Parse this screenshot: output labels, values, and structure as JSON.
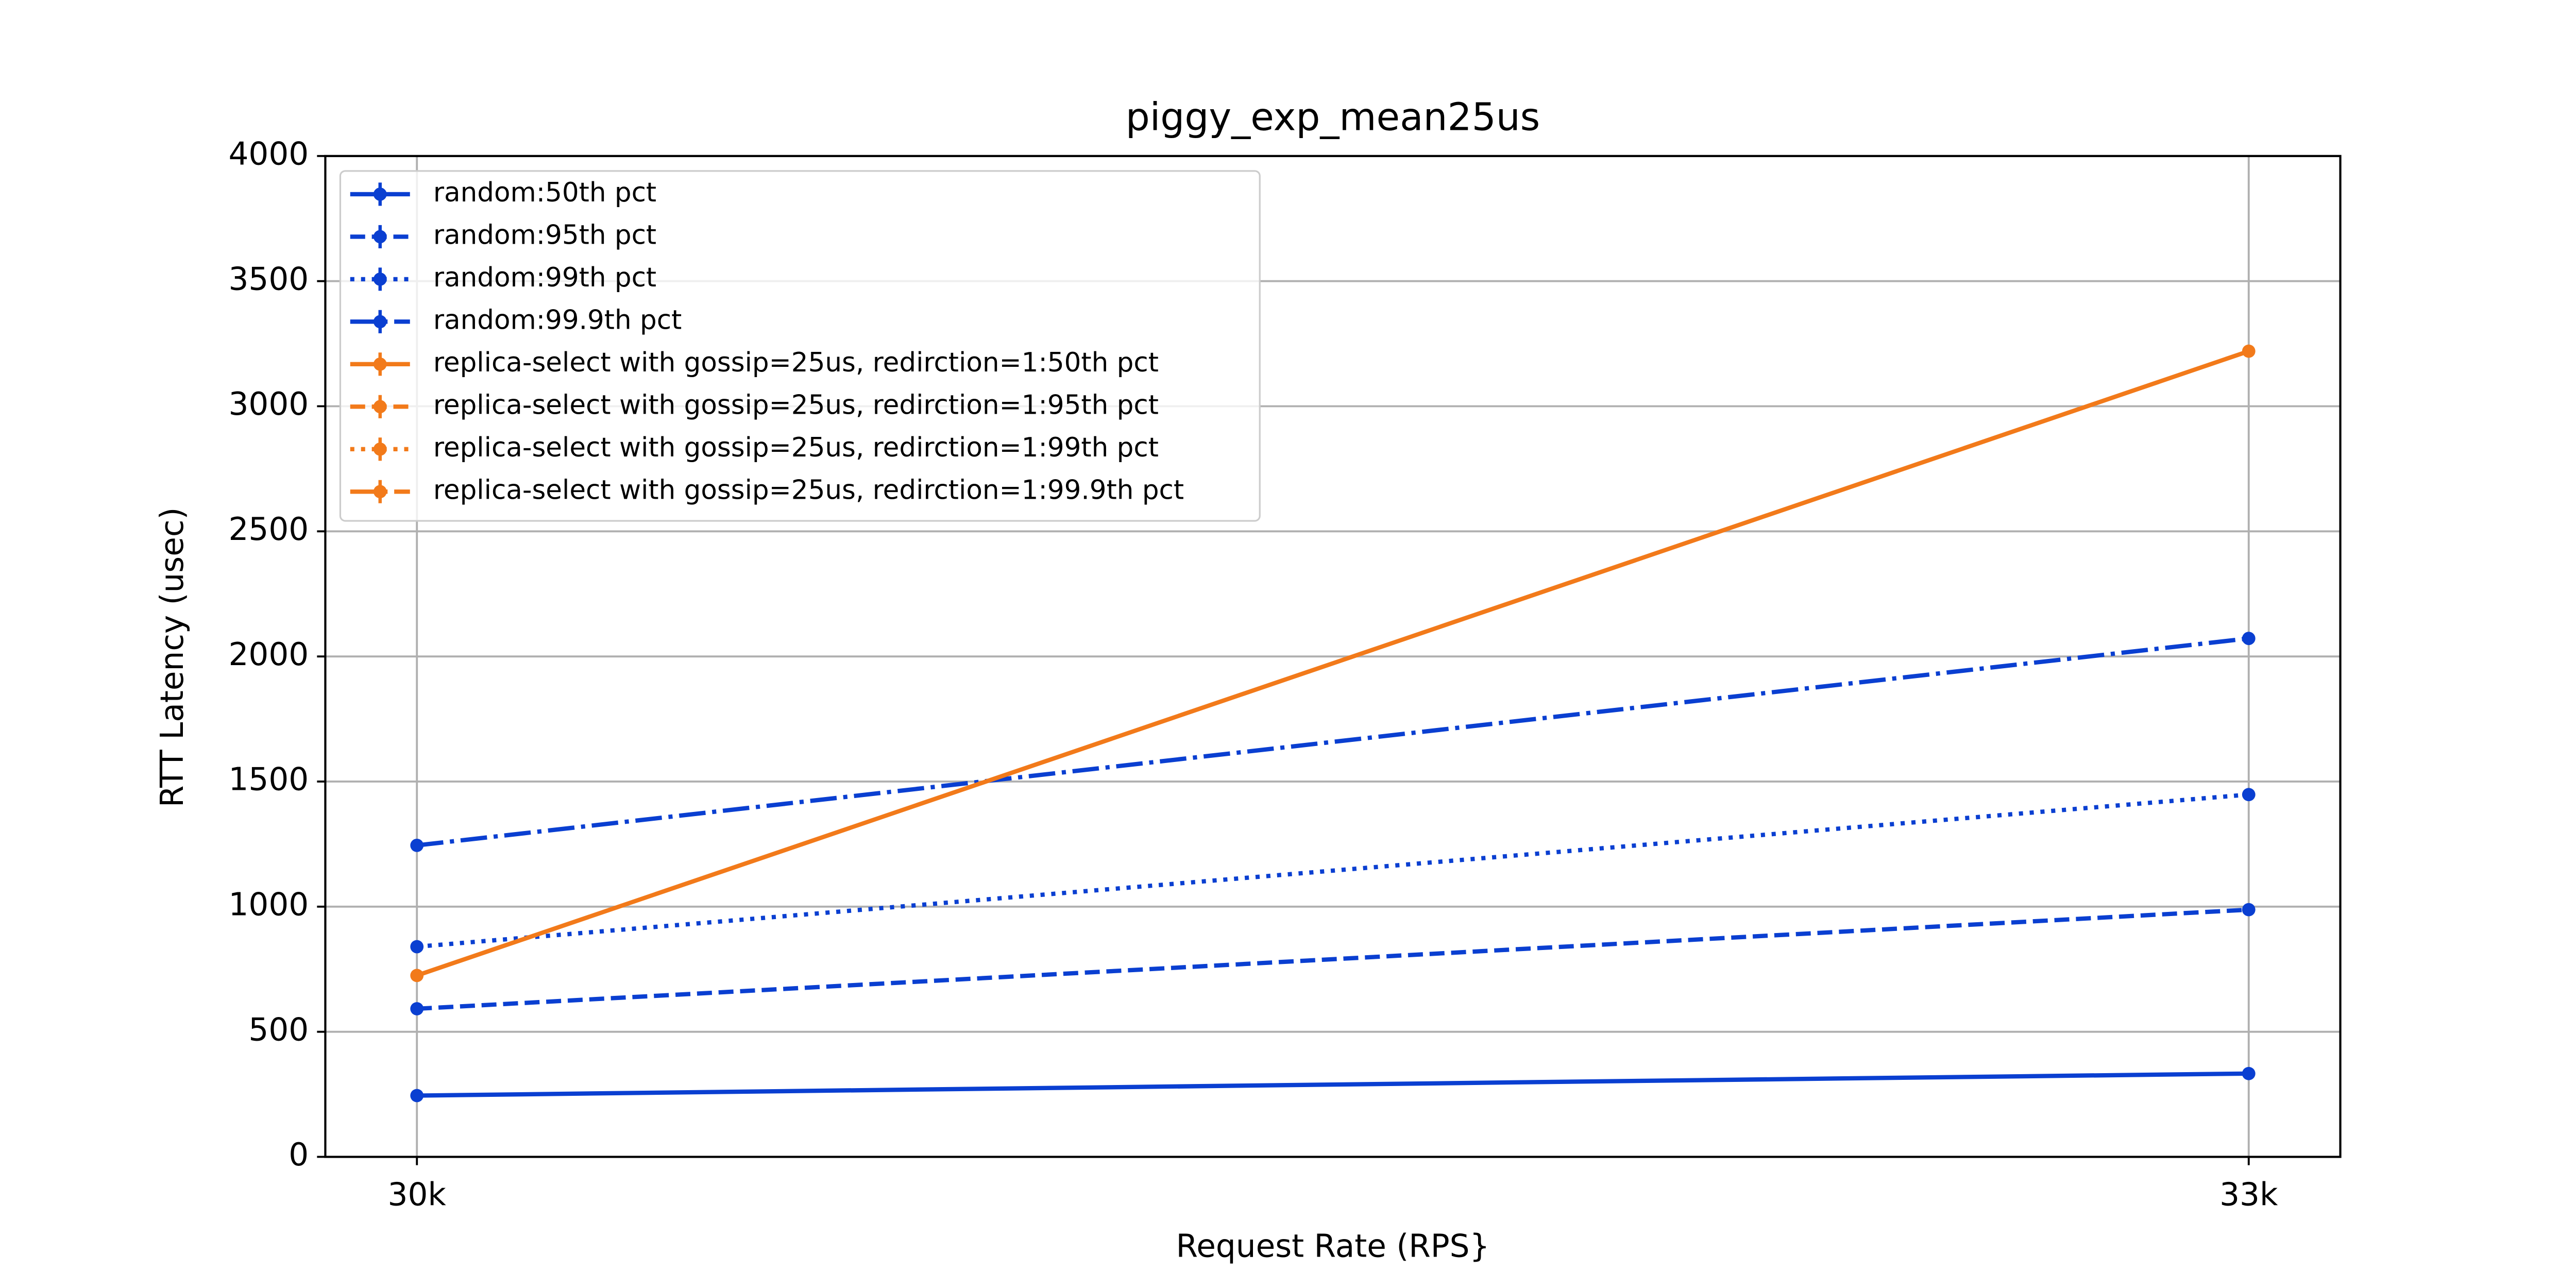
{
  "chart_data": {
    "type": "line",
    "title": "piggy_exp_mean25us",
    "xlabel": "Request Rate (RPS}",
    "ylabel": "RTT Latency (usec)",
    "categories": [
      "30k",
      "33k"
    ],
    "ylim": [
      0,
      4000
    ],
    "yticks": [
      0,
      500,
      1000,
      1500,
      2000,
      2500,
      3000,
      3500,
      4000
    ],
    "grid": true,
    "legend": "upper left",
    "series": [
      {
        "name": "random:50th pct",
        "color": "#0a3fd1",
        "style": "solid",
        "values": [
          245,
          333
        ]
      },
      {
        "name": "random:95th pct",
        "color": "#0a3fd1",
        "style": "dashed",
        "values": [
          592,
          988
        ]
      },
      {
        "name": "random:99th pct",
        "color": "#0a3fd1",
        "style": "dotted",
        "values": [
          840,
          1448
        ]
      },
      {
        "name": "random:99.9th pct",
        "color": "#0a3fd1",
        "style": "dashdot",
        "values": [
          1245,
          2072
        ]
      },
      {
        "name": "replica-select with gossip=25us, redirction=1:50th pct",
        "color": "#f27a1a",
        "style": "solid",
        "values": [
          725,
          3220
        ]
      },
      {
        "name": "replica-select with gossip=25us, redirction=1:95th pct",
        "color": "#f27a1a",
        "style": "dashed",
        "values": [
          null,
          null
        ]
      },
      {
        "name": "replica-select with gossip=25us, redirction=1:99th pct",
        "color": "#f27a1a",
        "style": "dotted",
        "values": [
          null,
          null
        ]
      },
      {
        "name": "replica-select with gossip=25us, redirction=1:99.9th pct",
        "color": "#f27a1a",
        "style": "dashdot",
        "values": [
          null,
          null
        ]
      }
    ]
  }
}
